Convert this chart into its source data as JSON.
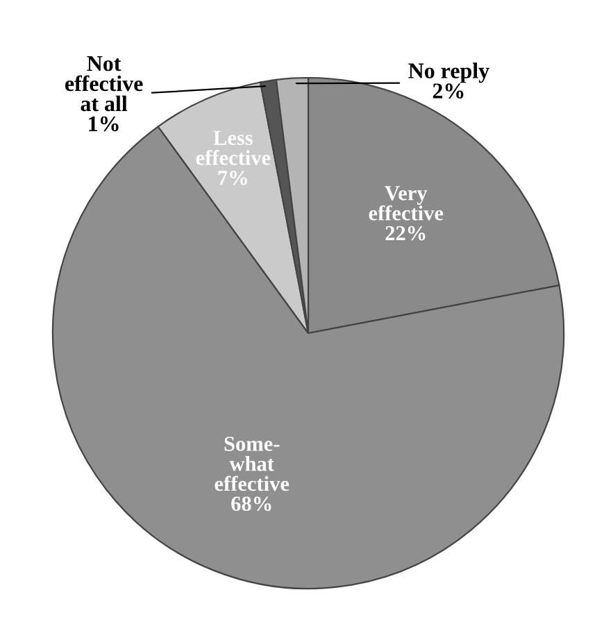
{
  "chart_data": {
    "type": "pie",
    "categories": [
      "Very\neffective",
      "Some-\nwhat\neffective",
      "Less\neffective",
      "Not\neffective\nat all",
      "No reply"
    ],
    "values": [
      22,
      68,
      7,
      1,
      2
    ],
    "colors": [
      "#8a8a8a",
      "#8f8f8f",
      "#cacaca",
      "#555555",
      "#b4b4b4"
    ],
    "value_labels": [
      "22%",
      "68%",
      "7%",
      "1%",
      "2%"
    ]
  }
}
